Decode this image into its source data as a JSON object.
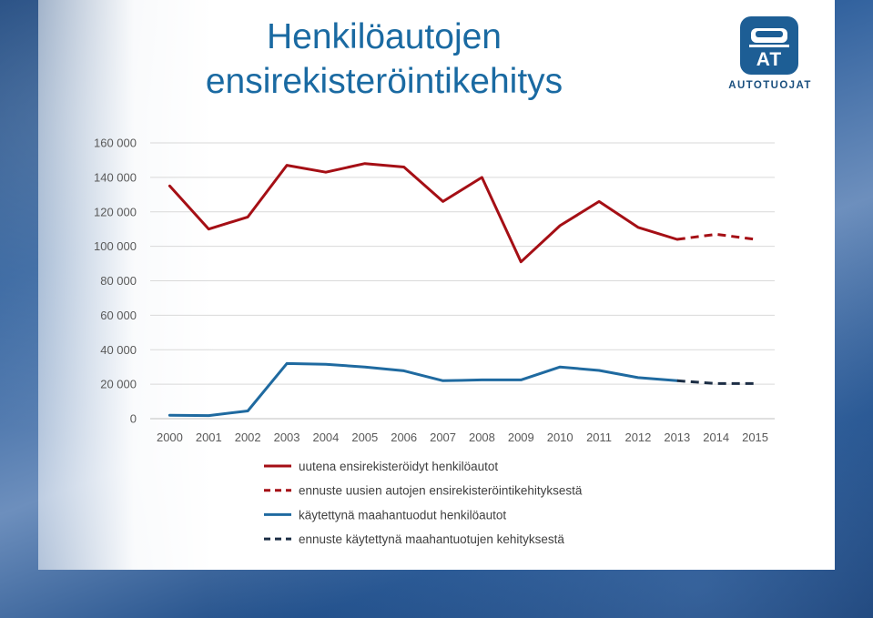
{
  "title_lines": [
    "Henkilöautojen",
    "ensirekisteröintikehitys"
  ],
  "logo": {
    "text": "AUTOTUOJAT",
    "badge_text": "AT",
    "color": "#1d5e95"
  },
  "chart_data": {
    "type": "line",
    "title": "Henkilöautojen ensirekisteröintikehitys",
    "xlabel": "",
    "ylabel": "",
    "x": [
      "2000",
      "2001",
      "2002",
      "2003",
      "2004",
      "2005",
      "2006",
      "2007",
      "2008",
      "2009",
      "2010",
      "2011",
      "2012",
      "2013",
      "2014",
      "2015"
    ],
    "ylim": [
      0,
      160000
    ],
    "yticks": [
      0,
      20000,
      40000,
      60000,
      80000,
      100000,
      120000,
      140000,
      160000
    ],
    "ytick_labels": [
      "0",
      "20 000",
      "40 000",
      "60 000",
      "80 000",
      "100 000",
      "120 000",
      "140 000",
      "160 000"
    ],
    "grid": true,
    "legend_position": "bottom",
    "series": [
      {
        "name": "uutena ensirekisteröidyt henkilöautot",
        "color": "#a50f15",
        "style": "solid",
        "x": [
          "2000",
          "2001",
          "2002",
          "2003",
          "2004",
          "2005",
          "2006",
          "2007",
          "2008",
          "2009",
          "2010",
          "2011",
          "2012",
          "2013"
        ],
        "values": [
          135000,
          110000,
          117000,
          147000,
          143000,
          148000,
          146000,
          126000,
          140000,
          91000,
          112000,
          126000,
          111000,
          104000
        ]
      },
      {
        "name": "ennuste uusien autojen ensirekisteröintikehityksestä",
        "color": "#a50f15",
        "style": "dashed",
        "x": [
          "2013",
          "2014",
          "2015"
        ],
        "values": [
          104000,
          107000,
          104000
        ]
      },
      {
        "name": "käytettynä maahantuodut henkilöautot",
        "color": "#1f6aa0",
        "style": "solid",
        "x": [
          "2000",
          "2001",
          "2002",
          "2003",
          "2004",
          "2005",
          "2006",
          "2007",
          "2008",
          "2009",
          "2010",
          "2011",
          "2012",
          "2013"
        ],
        "values": [
          2000,
          1800,
          4500,
          32000,
          31500,
          30000,
          27800,
          22000,
          22500,
          22500,
          30000,
          28000,
          23800,
          22000
        ]
      },
      {
        "name": "ennuste käytettynä maahantuotujen kehityksestä",
        "color": "#1c2e45",
        "style": "dashed",
        "x": [
          "2013",
          "2014",
          "2015"
        ],
        "values": [
          22000,
          20400,
          20400
        ]
      }
    ]
  }
}
